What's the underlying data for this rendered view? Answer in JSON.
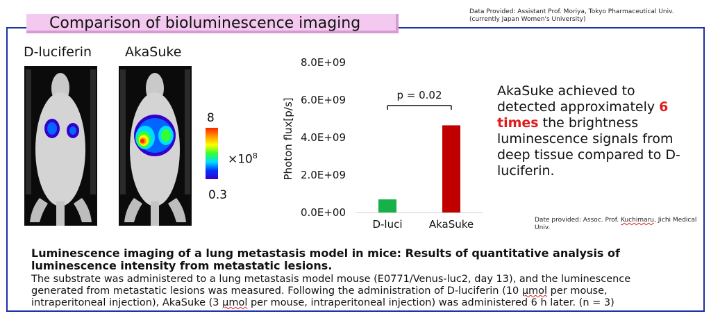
{
  "title": "Comparison of bioluminescence imaging",
  "provider_note": {
    "line1": "Data Provided: Assistant Prof. Moriya, Tokyo Pharmaceutical Univ.",
    "line2": "(currently Japan Women's University)"
  },
  "images": {
    "left_label": "D-luciferin",
    "right_label": "AkaSuke"
  },
  "scale": {
    "max": "8",
    "min": "0.3",
    "unit_prefix": "×10",
    "unit_exp": "8"
  },
  "colors": {
    "frame": "#1a2fa8",
    "banner": "#f4c9f0",
    "d_luci_bar": "#18b04a",
    "akasuke_bar": "#c00000",
    "highlight": "#e01b1b"
  },
  "chart_data": {
    "type": "bar",
    "categories": [
      "D-luci",
      "AkaSuke"
    ],
    "values": [
      700000000,
      4650000000
    ],
    "ylabel": "Photon flux[p/s]",
    "ylim": [
      0,
      8000000000
    ],
    "yticks": [
      "0.0E+00",
      "2.0E+09",
      "4.0E+09",
      "6.0E+09",
      "8.0E+09"
    ],
    "annotation": "p = 0.02",
    "grid": false
  },
  "summary": {
    "pre": "AkaSuke achieved to detected approximately",
    "highlight": "6 times",
    "post": "the brightness luminescence signals from deep tissue compared to D-luciferin."
  },
  "date_provided": {
    "pre": "Date provided: Assoc. Prof. ",
    "name": "Kuchimaru",
    "post": ", Jichi Medical Univ."
  },
  "caption": {
    "heading": "Luminescence imaging of a lung metastasis model in mice: Results of quantitative analysis of luminescence intensity from metastatic lesions.",
    "body_1": "The substrate was administered to a lung metastasis model mouse (E0771/Venus-luc2, day 13), and the luminescence generated from metastatic lesions was measured. Following the administration of D-luciferin (10 ",
    "unit_a": "μmol",
    "body_2": " per mouse, intraperitoneal injection), AkaSuke (3 ",
    "unit_b": "μmol",
    "body_3": " per mouse, intraperitoneal injection) was administered 6 h later. (n = 3)"
  }
}
